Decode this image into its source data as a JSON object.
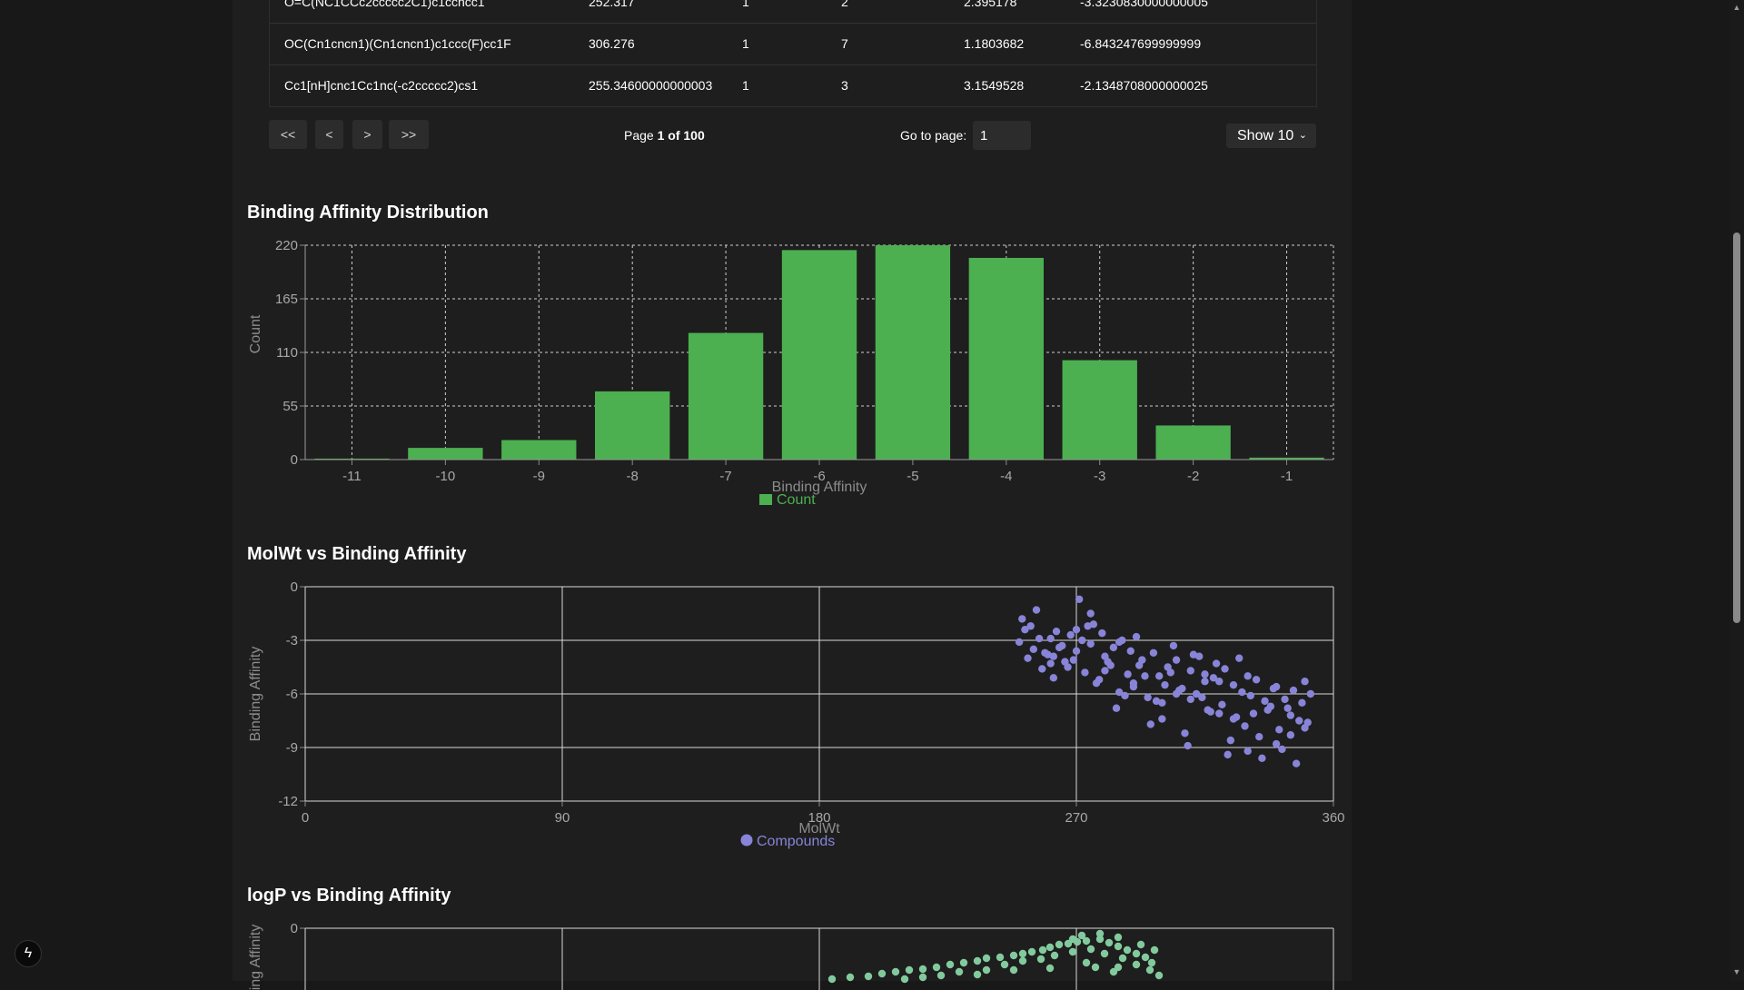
{
  "table": {
    "rows": [
      [
        "O=C(NC1CCc2ccccc2C1)c1ccncc1",
        "252.317",
        "1",
        "2",
        "2.395178",
        "-3.3230830000000005"
      ],
      [
        "OC(Cn1cncn1)(Cn1cncn1)c1ccc(F)cc1F",
        "306.276",
        "1",
        "7",
        "1.1803682",
        "-6.843247699999999"
      ],
      [
        "Cc1[nH]cnc1Cc1nc(-c2ccccc2)cs1",
        "255.34600000000003",
        "1",
        "3",
        "3.1549528",
        "-2.1348708000000025"
      ]
    ]
  },
  "pagination": {
    "first_label": "<<",
    "prev_label": "<",
    "next_label": ">",
    "last_label": ">>",
    "page_prefix": "Page ",
    "current_page": "1",
    "of_text": " of 100",
    "goto_label": "Go to page:",
    "goto_value": "1",
    "show_label": "Show 10",
    "chevron": "⌄"
  },
  "sections": {
    "hist_title": "Binding Affinity Distribution",
    "molwt_title": "MolWt vs Binding Affinity",
    "logp_title": "logP vs Binding Affinity"
  },
  "chart_data": [
    {
      "type": "bar",
      "title": "Binding Affinity Distribution",
      "xlabel": "Binding Affinity",
      "ylabel": "Count",
      "categories": [
        "-11",
        "-10",
        "-9",
        "-8",
        "-7",
        "-6",
        "-5",
        "-4",
        "-3",
        "-2",
        "-1"
      ],
      "series": [
        {
          "name": "Count",
          "values": [
            1,
            12,
            20,
            70,
            130,
            215,
            220,
            207,
            102,
            35,
            2
          ]
        }
      ],
      "ylim": [
        0,
        220
      ],
      "yticks": [
        "0",
        "55",
        "110",
        "165",
        "220"
      ],
      "grid": true,
      "legend": "bottom-center",
      "color": "#4cb050"
    },
    {
      "type": "scatter",
      "title": "MolWt vs Binding Affinity",
      "xlabel": "MolWt",
      "ylabel": "Binding Affinity",
      "xlim": [
        0,
        360
      ],
      "ylim": [
        -12,
        0
      ],
      "xticks": [
        "0",
        "90",
        "180",
        "270",
        "360"
      ],
      "yticks": [
        "0",
        "-3",
        "-6",
        "-9",
        "-12"
      ],
      "series": [
        {
          "name": "Compounds",
          "color": "#8884d8",
          "x": [
            250,
            252,
            253,
            255,
            256,
            258,
            260,
            261,
            262,
            264,
            266,
            268,
            270,
            271,
            273,
            275,
            277,
            279,
            280,
            282,
            284,
            286,
            288,
            290,
            291,
            293,
            295,
            297,
            299,
            300,
            302,
            304,
            306,
            308,
            310,
            312,
            313,
            315,
            317,
            319,
            321,
            323,
            325,
            327,
            329,
            331,
            333,
            335,
            337,
            339,
            341,
            343,
            345,
            347,
            349,
            351,
            352,
            254,
            259,
            263,
            267,
            272,
            276,
            281,
            285,
            289,
            294,
            298,
            303,
            307,
            311,
            316,
            320,
            324,
            328,
            332,
            336,
            340,
            344,
            348,
            251,
            257,
            265,
            269,
            274,
            278,
            283,
            287,
            292,
            296,
            301,
            305,
            309,
            314,
            318,
            322,
            326,
            330,
            334,
            338,
            342,
            346,
            350,
            262,
            280,
            300,
            320,
            340,
            270,
            290,
            310,
            330,
            350,
            285,
            315,
            345,
            261,
            275,
            305,
            325
          ],
          "y": [
            -3.1,
            -2.4,
            -4.0,
            -3.5,
            -1.3,
            -4.6,
            -3.8,
            -2.9,
            -5.1,
            -3.4,
            -4.2,
            -2.7,
            -3.6,
            -0.7,
            -4.8,
            -3.2,
            -5.4,
            -2.6,
            -3.9,
            -4.4,
            -6.8,
            -3.0,
            -4.9,
            -5.6,
            -2.8,
            -4.1,
            -6.2,
            -3.7,
            -5.0,
            -7.4,
            -4.5,
            -3.3,
            -5.8,
            -8.2,
            -4.7,
            -6.0,
            -3.9,
            -5.3,
            -7.0,
            -4.3,
            -6.6,
            -9.4,
            -5.5,
            -4.0,
            -7.8,
            -6.1,
            -5.2,
            -9.6,
            -6.9,
            -5.7,
            -8.0,
            -6.3,
            -7.2,
            -9.9,
            -6.5,
            -7.6,
            -6.0,
            -2.2,
            -3.7,
            -2.5,
            -4.5,
            -3.0,
            -2.1,
            -4.2,
            -5.9,
            -3.6,
            -5.0,
            -6.4,
            -4.8,
            -5.7,
            -3.8,
            -6.9,
            -5.3,
            -8.6,
            -5.9,
            -7.1,
            -6.4,
            -5.6,
            -6.8,
            -7.5,
            -1.8,
            -2.9,
            -3.3,
            -4.1,
            -2.2,
            -5.2,
            -3.4,
            -6.1,
            -4.4,
            -7.7,
            -5.5,
            -4.1,
            -8.9,
            -6.2,
            -5.1,
            -4.6,
            -7.3,
            -5.0,
            -8.4,
            -6.7,
            -9.1,
            -5.8,
            -7.9,
            -3.9,
            -4.7,
            -6.5,
            -7.1,
            -8.8,
            -2.4,
            -5.4,
            -6.3,
            -9.2,
            -5.3,
            -3.1,
            -4.9,
            -8.3,
            -4.3,
            -1.5,
            -6.0,
            -7.4
          ]
        }
      ],
      "grid": true,
      "legend": "bottom-center"
    },
    {
      "type": "scatter",
      "title": "logP vs Binding Affinity",
      "xlabel": "",
      "ylabel": "Binding Affinity",
      "yticks": [
        "0"
      ],
      "series": [
        {
          "name": "",
          "color": "#82ca9d"
        }
      ],
      "grid": true
    }
  ]
}
